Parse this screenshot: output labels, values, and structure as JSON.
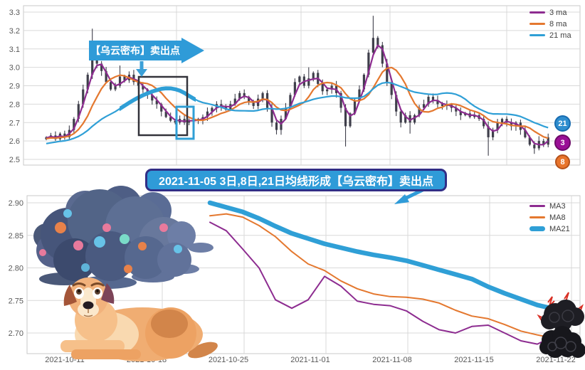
{
  "top_chart": {
    "callout_text": "【乌云密布】卖出点",
    "legend": [
      {
        "label": "3 ma",
        "color": "#8d2c90"
      },
      {
        "label": "8 ma",
        "color": "#e4782f"
      },
      {
        "label": "21 ma",
        "color": "#2f9fd6"
      }
    ],
    "badges": [
      {
        "label": "21",
        "color": "#2f8ecf",
        "border": "#176bb0"
      },
      {
        "label": "3",
        "color": "#9a0f96",
        "border": "#6d0a68"
      },
      {
        "label": "8",
        "color": "#e8742b",
        "border": "#b5511a"
      }
    ]
  },
  "annotation_banner": {
    "text": "2021-11-05 3日,8日,21日均线形成【乌云密布】卖出点"
  },
  "bottom_chart": {
    "legend": [
      {
        "label": "MA3",
        "color": "#8d2c90"
      },
      {
        "label": "MA8",
        "color": "#e4782f"
      },
      {
        "label": "MA21",
        "color": "#2f9fd6"
      }
    ]
  },
  "chart_data": [
    {
      "type": "candlestick",
      "title": "",
      "ylabel": "",
      "y_ticks": [
        3.3,
        3.2,
        3.1,
        3.0,
        2.9,
        2.8,
        2.7,
        2.6,
        2.5
      ],
      "ylim": [
        2.47,
        3.33
      ],
      "grid": true,
      "legend_position": "top-right",
      "ma_windows": [
        3,
        8,
        21
      ],
      "colors": {
        "candle": "#3f3f4b",
        "ma3": "#8d2c90",
        "ma8": "#e4782f",
        "ma21": "#2f9fd6"
      },
      "pre_closes": [
        2.52,
        2.54,
        2.53,
        2.55,
        2.56,
        2.54,
        2.56,
        2.58,
        2.57,
        2.59,
        2.58,
        2.6,
        2.59,
        2.61,
        2.6,
        2.62,
        2.61,
        2.6,
        2.62,
        2.61,
        2.62
      ],
      "closes": [
        2.62,
        2.63,
        2.61,
        2.64,
        2.62,
        2.66,
        2.72,
        2.8,
        2.88,
        2.96,
        3.05,
        3.02,
        2.98,
        2.92,
        2.88,
        2.9,
        2.95,
        2.93,
        2.96,
        2.92,
        2.9,
        2.88,
        2.85,
        2.82,
        2.8,
        2.76,
        2.73,
        2.71,
        2.7,
        2.72,
        2.7,
        2.71,
        2.72,
        2.71,
        2.73,
        2.76,
        2.78,
        2.8,
        2.79,
        2.77,
        2.8,
        2.83,
        2.86,
        2.84,
        2.81,
        2.79,
        2.83,
        2.86,
        2.78,
        2.7,
        2.66,
        2.72,
        2.78,
        2.85,
        2.92,
        2.95,
        2.9,
        2.94,
        2.97,
        2.91,
        2.87,
        2.88,
        2.9,
        2.86,
        2.78,
        2.68,
        2.75,
        2.82,
        2.88,
        2.96,
        3.08,
        3.16,
        3.12,
        3.02,
        2.92,
        2.85,
        2.76,
        2.7,
        2.74,
        2.7,
        2.74,
        2.78,
        2.8,
        2.84,
        2.82,
        2.8,
        2.79,
        2.8,
        2.78,
        2.76,
        2.74,
        2.75,
        2.73,
        2.74,
        2.72,
        2.68,
        2.62,
        2.66,
        2.7,
        2.72,
        2.7,
        2.68,
        2.7,
        2.66,
        2.62,
        2.58,
        2.56,
        2.6,
        2.58,
        2.62
      ],
      "spikes": [
        [
          10,
          "h",
          3.21
        ],
        [
          16,
          "h",
          3.01
        ],
        [
          57,
          "h",
          3.0
        ],
        [
          65,
          "l",
          2.57
        ],
        [
          71,
          "h",
          3.28
        ],
        [
          79,
          "l",
          2.64
        ],
        [
          96,
          "l",
          2.52
        ],
        [
          106,
          "l",
          2.53
        ]
      ]
    },
    {
      "type": "line",
      "title": "",
      "x_tick_labels": [
        "2021-10-11",
        "2021-10-18",
        "2021-10-25",
        "2021-11-01",
        "2021-11-08",
        "2021-11-15",
        "2021-11-22"
      ],
      "dates": [
        "2021-10-21",
        "2021-10-22",
        "2021-10-25",
        "2021-10-26",
        "2021-10-27",
        "2021-10-28",
        "2021-10-29",
        "2021-11-01",
        "2021-11-02",
        "2021-11-03",
        "2021-11-04",
        "2021-11-05",
        "2021-11-08",
        "2021-11-09",
        "2021-11-10",
        "2021-11-11",
        "2021-11-12",
        "2021-11-15",
        "2021-11-16",
        "2021-11-17",
        "2021-11-18",
        "2021-11-19"
      ],
      "y_ticks": [
        2.9,
        2.85,
        2.8,
        2.75,
        2.7
      ],
      "ylim": [
        2.668,
        2.912
      ],
      "grid": true,
      "legend_position": "top-right",
      "series": [
        {
          "name": "MA3",
          "color": "#8d2c90",
          "width": 2,
          "values": [
            2.87,
            2.857,
            2.829,
            2.8,
            2.751,
            2.738,
            2.751,
            2.787,
            2.772,
            2.749,
            2.744,
            2.742,
            2.734,
            2.718,
            2.705,
            2.7,
            2.71,
            2.712,
            2.7,
            2.688,
            2.683,
            2.695
          ]
        },
        {
          "name": "MA8",
          "color": "#e4782f",
          "width": 2,
          "values": [
            2.88,
            2.883,
            2.878,
            2.865,
            2.848,
            2.825,
            2.806,
            2.796,
            2.78,
            2.768,
            2.76,
            2.756,
            2.755,
            2.752,
            2.746,
            2.735,
            2.726,
            2.722,
            2.713,
            2.703,
            2.697,
            2.692
          ]
        },
        {
          "name": "MA21",
          "color": "#2f9fd6",
          "width": 6.5,
          "values": [
            2.9,
            2.893,
            2.886,
            2.876,
            2.864,
            2.853,
            2.845,
            2.837,
            2.831,
            2.825,
            2.82,
            2.816,
            2.811,
            2.804,
            2.797,
            2.79,
            2.783,
            2.771,
            2.761,
            2.752,
            2.743,
            2.737
          ]
        }
      ]
    }
  ]
}
